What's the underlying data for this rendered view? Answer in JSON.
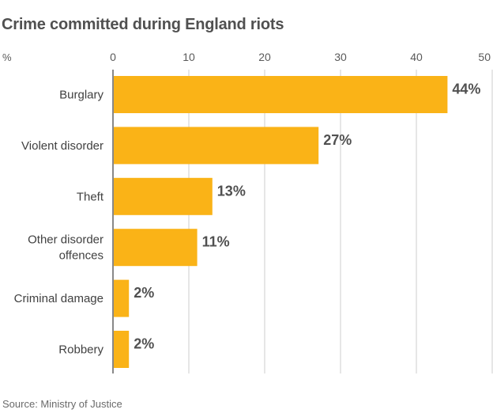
{
  "chart_data": {
    "type": "bar",
    "orientation": "horizontal",
    "title": "Crime committed during England riots",
    "unit_label": "%",
    "categories": [
      "Burglary",
      "Violent disorder",
      "Theft",
      "Other disorder offences",
      "Criminal damage",
      "Robbery"
    ],
    "category_lines": [
      [
        "Burglary"
      ],
      [
        "Violent disorder"
      ],
      [
        "Theft"
      ],
      [
        "Other disorder",
        "offences"
      ],
      [
        "Criminal damage"
      ],
      [
        "Robbery"
      ]
    ],
    "values": [
      44,
      27,
      13,
      11,
      2,
      2
    ],
    "value_labels": [
      "44%",
      "27%",
      "13%",
      "11%",
      "2%",
      "2%"
    ],
    "xlim": [
      0,
      50
    ],
    "xticks": [
      0,
      10,
      20,
      30,
      40,
      50
    ],
    "grid": true,
    "source": "Source: Ministry of Justice",
    "colors": {
      "bar": "#fab317",
      "grid": "#cccccc",
      "axis": "#888888"
    }
  }
}
